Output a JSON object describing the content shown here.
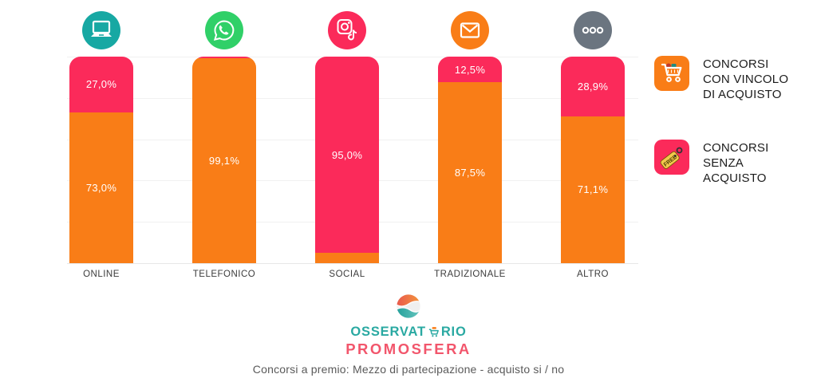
{
  "page": {
    "background": "#ffffff"
  },
  "chart_data": {
    "type": "bar",
    "stacked": true,
    "orientation": "vertical",
    "unit": "%",
    "ylim": [
      0,
      100
    ],
    "grid": {
      "horizontal": true,
      "interval_percent": 20
    },
    "legend_position": "right",
    "categories": [
      "ONLINE",
      "TELEFONICO",
      "SOCIAL",
      "TRADIZIONALE",
      "ALTRO"
    ],
    "category_icons": [
      {
        "name": "laptop-icon",
        "glyph": "laptop",
        "bg": "#17A8A3"
      },
      {
        "name": "whatsapp-icon",
        "glyph": "whatsapp",
        "bg": "#30D068"
      },
      {
        "name": "instagram-tiktok-icon",
        "glyph": "social",
        "bg": "#FB2A5A"
      },
      {
        "name": "envelope-icon",
        "glyph": "envelope",
        "bg": "#F97D17"
      },
      {
        "name": "ellipsis-icon",
        "glyph": "dots",
        "bg": "#6B7580"
      }
    ],
    "series": [
      {
        "name": "CONCORSI CON VINCOLO DI ACQUISTO",
        "color": "#F97D17",
        "values": [
          73.0,
          99.1,
          5.0,
          87.5,
          71.1
        ],
        "value_labels": [
          "73,0%",
          "99,1%",
          "",
          "87,5%",
          "71,1%"
        ]
      },
      {
        "name": "CONCORSI SENZA ACQUISTO",
        "color": "#FB2A5A",
        "values": [
          27.0,
          0.9,
          95.0,
          12.5,
          28.9
        ],
        "value_labels": [
          "27,0%",
          "",
          "95,0%",
          "12,5%",
          "28,9%"
        ]
      }
    ]
  },
  "legend": {
    "items": [
      {
        "label": "CONCORSI\nCON VINCOLO\nDI ACQUISTO",
        "icon": "shopping-cart-icon",
        "color": "#F97D17"
      },
      {
        "label": "CONCORSI\nSENZA\nACQUISTO",
        "icon": "free-tag-icon",
        "color": "#FB2A5A"
      }
    ]
  },
  "footer": {
    "brand_pre": "OSSERVAT",
    "brand_post": "RIO",
    "brand_line2": "PROMOSFERA",
    "brand_color_primary": "#2AA9A2",
    "brand_color_secondary": "#F2566C",
    "caption": "Concorsi a premio: Mezzo di partecipazione - acquisto si / no"
  }
}
